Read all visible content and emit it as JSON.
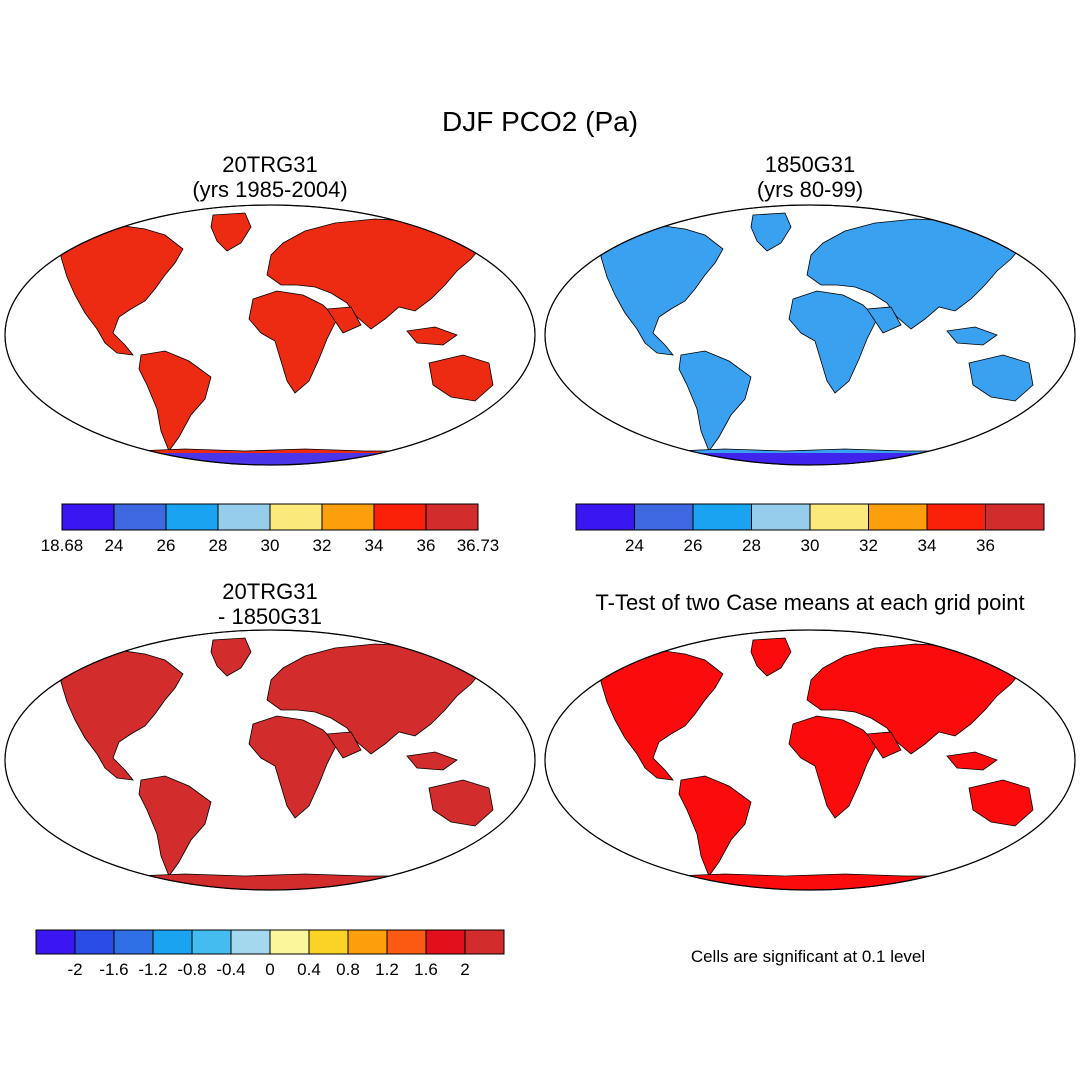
{
  "title": "DJF PCO2 (Pa)",
  "panels": {
    "top_left": {
      "title_line1": "20TRG31",
      "title_line2": "(yrs 1985-2004)"
    },
    "top_right": {
      "title_line1": "1850G31",
      "title_line2": "(yrs 80-99)"
    },
    "bottom_left": {
      "title_line1": "20TRG31",
      "title_line2": "- 1850G31"
    },
    "bottom_right": {
      "title_line1": "T-Test of two Case means at each grid point"
    }
  },
  "colorbars": {
    "top_left": {
      "colors": [
        "#3a16f0",
        "#3d68e0",
        "#1aa3f0",
        "#96cdec",
        "#fbe97a",
        "#fb9f0c",
        "#fb2008",
        "#d22c2c"
      ],
      "labels": [
        "18.68",
        "24",
        "26",
        "28",
        "30",
        "32",
        "34",
        "36",
        "36.73"
      ]
    },
    "top_right": {
      "colors": [
        "#3a16f0",
        "#3d68e0",
        "#1aa3f0",
        "#96cdec",
        "#fbe97a",
        "#fb9f0c",
        "#fb2008",
        "#d22c2c"
      ],
      "labels": [
        "24",
        "26",
        "28",
        "30",
        "32",
        "34",
        "36"
      ]
    },
    "bottom": {
      "colors": [
        "#3b16f1",
        "#2a4de8",
        "#2f6fe5",
        "#1aa3f0",
        "#44bcef",
        "#a3d8ef",
        "#fbf59b",
        "#fbd324",
        "#fb9f0c",
        "#fb5a12",
        "#e1101a",
        "#d22c2c"
      ],
      "labels": [
        "-2",
        "-1.6",
        "-1.2",
        "-0.8",
        "-0.4",
        "0",
        "0.4",
        "0.8",
        "1.2",
        "1.6",
        "2"
      ]
    }
  },
  "maps": {
    "top_left": {
      "land_color": "#ed2b12",
      "antarctica_color": "#4a35e8"
    },
    "top_right": {
      "land_color": "#3aa0f0",
      "antarctica_color": "#4024ee"
    },
    "bottom_left": {
      "land_color": "#d22c2c",
      "antarctica_color": "#d22c2c"
    },
    "bottom_right": {
      "land_color": "#fb0b0b",
      "antarctica_color": "#fb0b0b"
    }
  },
  "footnote": "Cells are significant at 0.1 level"
}
